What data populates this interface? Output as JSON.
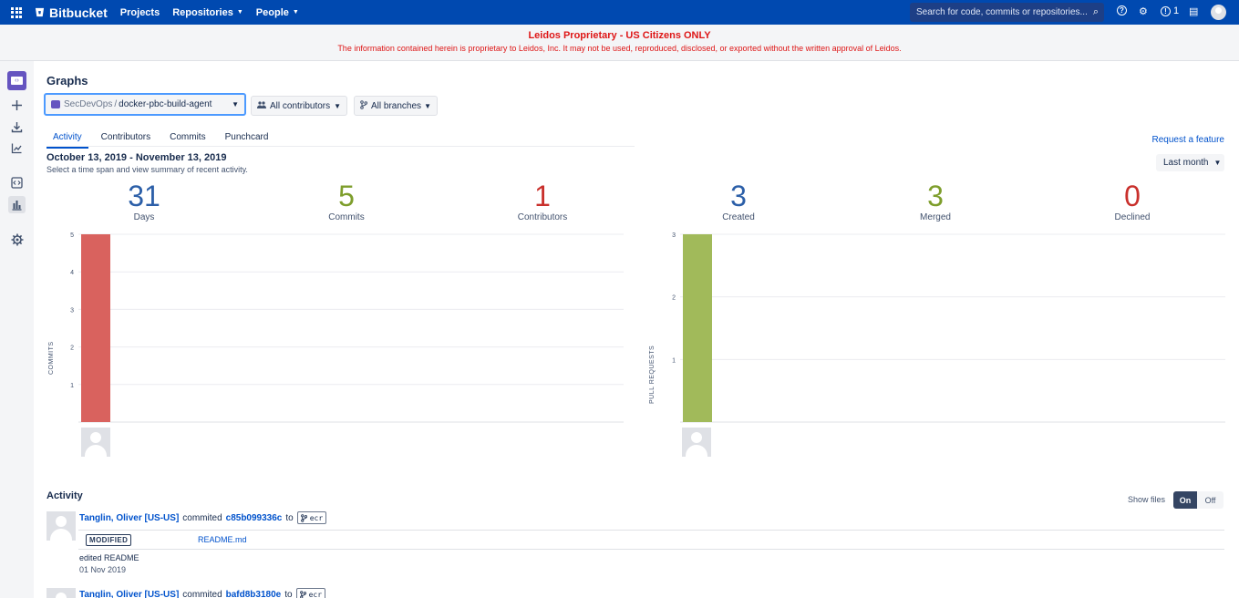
{
  "topnav": {
    "brand": "Bitbucket",
    "links": [
      "Projects",
      "Repositories",
      "People"
    ],
    "search_placeholder": "Search for code, commits or repositories...",
    "notifications_count": "1"
  },
  "banner": {
    "title": "Leidos Proprietary - US Citizens ONLY",
    "text": "The information contained herein is proprietary to Leidos, Inc. It may not be used, reproduced, disclosed, or exported without the written approval of Leidos."
  },
  "page": {
    "title": "Graphs",
    "repo_project": "SecDevOps",
    "repo_separator": "/",
    "repo_name": "docker-pbc-build-agent",
    "contributors_filter": "All contributors",
    "branches_filter": "All branches",
    "tabs": [
      "Activity",
      "Contributors",
      "Commits",
      "Punchcard"
    ],
    "active_tab": "Activity",
    "request_feature": "Request a feature",
    "date_range": "October 13, 2019 - November 13, 2019",
    "date_sub": "Select a time span and view summary of recent activity.",
    "time_span": "Last month"
  },
  "stats": [
    {
      "value": "31",
      "label": "Days",
      "color": "#2c5fa8"
    },
    {
      "value": "5",
      "label": "Commits",
      "color": "#7e9e2c"
    },
    {
      "value": "1",
      "label": "Contributors",
      "color": "#c9302c"
    },
    {
      "value": "3",
      "label": "Created",
      "color": "#2c5fa8"
    },
    {
      "value": "3",
      "label": "Merged",
      "color": "#7e9e2c"
    },
    {
      "value": "0",
      "label": "Declined",
      "color": "#c9302c"
    }
  ],
  "charts": {
    "commits": {
      "ylabel": "COMMITS",
      "ticks": [
        "5",
        "4",
        "3",
        "2",
        "1"
      ],
      "bar_value": 5,
      "ymax": 5,
      "color": "#d9625e"
    },
    "pull_requests": {
      "ylabel": "PULL REQUESTS",
      "ticks": [
        "3",
        "2",
        "1"
      ],
      "bar_value": 3,
      "ymax": 3,
      "color": "#a1ba5a"
    }
  },
  "activity": {
    "title": "Activity",
    "show_files_label": "Show files",
    "toggle_on": "On",
    "toggle_off": "Off",
    "commits": [
      {
        "user": "Tanglin, Oliver [US-US]",
        "action": "commited",
        "hash": "c85b099336c",
        "to": "to",
        "branch": "ecr",
        "file_status": "MODIFIED",
        "file": "README.md",
        "message": "edited README",
        "date": "01 Nov 2019"
      },
      {
        "user": "Tanglin, Oliver [US-US]",
        "action": "commited",
        "hash": "bafd8b3180e",
        "to": "to",
        "branch": "ecr"
      }
    ]
  }
}
